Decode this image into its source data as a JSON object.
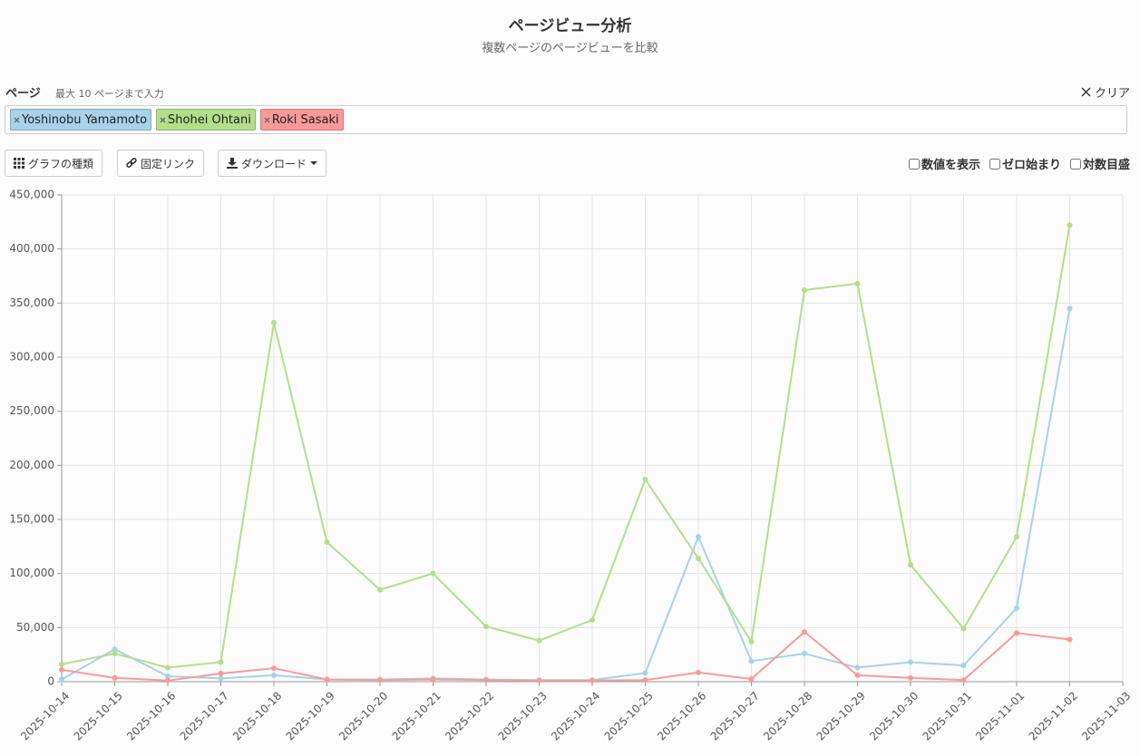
{
  "header": {
    "title": "ページビュー分析",
    "subtitle": "複数ページのページビューを比較"
  },
  "controls": {
    "pages_label": "ページ",
    "pages_hint": "最大 10 ページまで入力",
    "clear": "クリア",
    "buttons": [
      "グラフの種類",
      "固定リンク",
      "ダウンロード"
    ],
    "options": [
      {
        "label": "数値を表示",
        "checked": false
      },
      {
        "label": "ゼロ始まり",
        "checked": false
      },
      {
        "label": "対数目盛",
        "checked": false
      }
    ]
  },
  "chart_data": {
    "type": "line",
    "categories": [
      "2025-10-14",
      "2025-10-15",
      "2025-10-16",
      "2025-10-17",
      "2025-10-18",
      "2025-10-19",
      "2025-10-20",
      "2025-10-21",
      "2025-10-22",
      "2025-10-23",
      "2025-10-24",
      "2025-10-25",
      "2025-10-26",
      "2025-10-27",
      "2025-10-28",
      "2025-10-29",
      "2025-10-30",
      "2025-10-31",
      "2025-11-01",
      "2025-11-02",
      "2025-11-03"
    ],
    "series": [
      {
        "name": "Yoshinobu Yamamoto",
        "color": "#a6d2ea",
        "values": [
          2000,
          30000,
          5000,
          3000,
          6000,
          2000,
          2000,
          3000,
          2000,
          1500,
          1500,
          8000,
          134000,
          19000,
          26000,
          13000,
          18000,
          15000,
          68000,
          345000,
          null
        ]
      },
      {
        "name": "Shohei Ohtani",
        "color": "#b2df8a",
        "values": [
          16000,
          26000,
          13000,
          18000,
          332000,
          129000,
          85000,
          100000,
          51000,
          38000,
          57000,
          187000,
          114000,
          37000,
          362000,
          368000,
          108000,
          49000,
          134000,
          422000,
          null
        ]
      },
      {
        "name": "Roki Sasaki",
        "color": "#f99a98",
        "values": [
          11000,
          3500,
          1000,
          7500,
          12500,
          2000,
          1500,
          2000,
          1500,
          1000,
          1000,
          1500,
          8500,
          2500,
          46000,
          6000,
          3500,
          1500,
          45000,
          39000,
          null
        ]
      }
    ],
    "ylim": [
      0,
      450000
    ],
    "yticks": [
      0,
      {
        "value": 50000,
        "label": "50,000"
      },
      {
        "value": 100000,
        "label": "100,000"
      },
      {
        "value": 150000,
        "label": "150,000"
      },
      {
        "value": 200000,
        "label": "200,000"
      },
      {
        "value": 250000,
        "label": "250,000"
      },
      {
        "value": 300000,
        "label": "300,000"
      },
      {
        "value": 350000,
        "label": "350,000"
      },
      {
        "value": 400000,
        "label": "400,000"
      },
      {
        "value": 450000,
        "label": "450,000"
      }
    ],
    "grid": true,
    "log_scale": false
  }
}
